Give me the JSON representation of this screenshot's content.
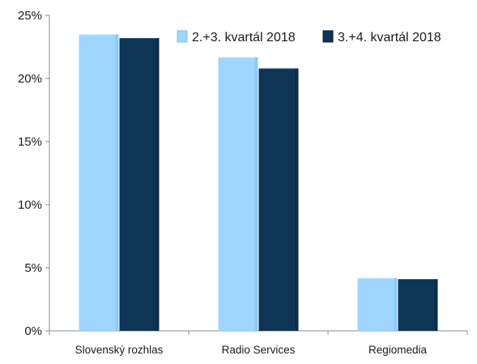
{
  "chart_data": {
    "type": "bar",
    "title": "",
    "xlabel": "",
    "ylabel": "",
    "categories": [
      "Slovenský rozhlas",
      "Radio Services",
      "Regiomedia"
    ],
    "series": [
      {
        "name": "2.+3. kvartál 2018",
        "values": [
          23.5,
          21.7,
          4.2
        ],
        "color": "#9fd6ff"
      },
      {
        "name": "3.+4. kvartál 2018",
        "values": [
          23.2,
          20.8,
          4.1
        ],
        "color": "#0e3556"
      }
    ],
    "ylim": [
      0,
      25
    ],
    "yticks": [
      0,
      5,
      10,
      15,
      20,
      25
    ],
    "ytick_labels": [
      "0%",
      "5%",
      "10%",
      "15%",
      "20%",
      "25%"
    ],
    "grid": false,
    "legend_position": "top-right"
  }
}
